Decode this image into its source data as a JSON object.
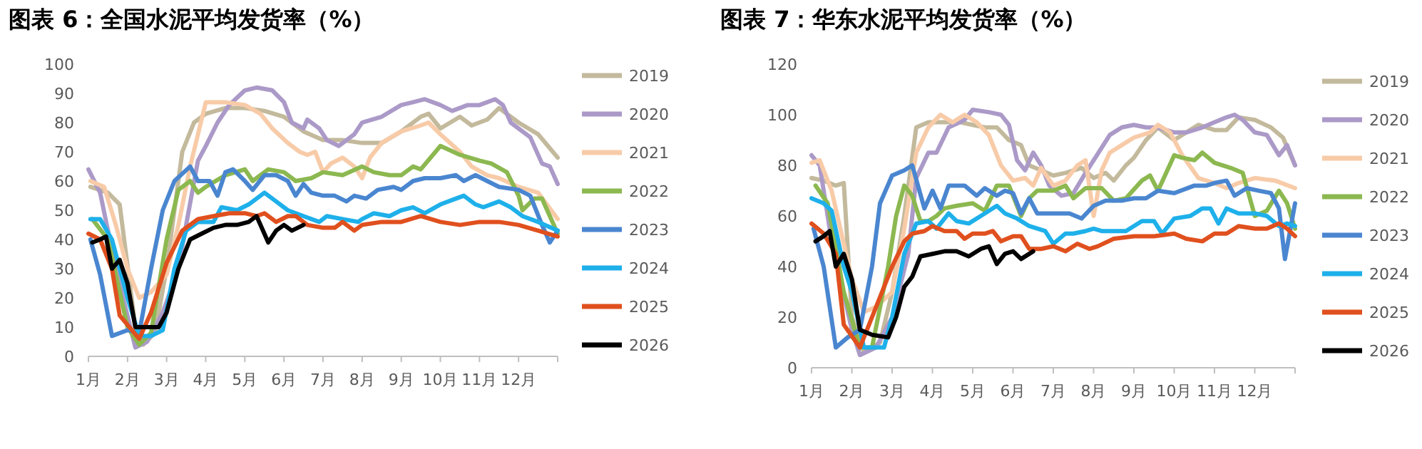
{
  "chart_data": [
    {
      "type": "line",
      "title": "图表 6：全国水泥平均发货率（%）",
      "xlim": [
        1,
        13
      ],
      "ylim": [
        0,
        100
      ],
      "yticks": [
        0,
        10,
        20,
        30,
        40,
        50,
        60,
        70,
        80,
        90,
        100
      ],
      "xticks": [
        {
          "value": 1,
          "label": "1月"
        },
        {
          "value": 2,
          "label": "2月"
        },
        {
          "value": 3,
          "label": "3月"
        },
        {
          "value": 4,
          "label": "4月"
        },
        {
          "value": 5,
          "label": "5月"
        },
        {
          "value": 6,
          "label": "6月"
        },
        {
          "value": 7,
          "label": "7月"
        },
        {
          "value": 8,
          "label": "8月"
        },
        {
          "value": 9,
          "label": "9月"
        },
        {
          "value": 10,
          "label": "10月"
        },
        {
          "value": 11,
          "label": "11月"
        },
        {
          "value": 12,
          "label": "12月"
        },
        {
          "value": 13,
          "label": null
        }
      ],
      "legend": "right",
      "grid": false,
      "marker": "none",
      "line_style": "solid",
      "series": [
        {
          "name": "2019",
          "color": "#c3b99c",
          "x": [
            1.05,
            1.5,
            1.8,
            2.2,
            2.4,
            2.7,
            3.0,
            3.4,
            3.7,
            4.0,
            4.5,
            5.0,
            5.5,
            6.0,
            6.5,
            7.0,
            7.5,
            8.0,
            8.5,
            9.0,
            9.5,
            9.7,
            10.0,
            10.5,
            10.8,
            11.2,
            11.5,
            12.0,
            12.5,
            13
          ],
          "values": [
            58,
            56,
            52,
            10,
            4,
            8,
            30,
            70,
            80,
            83,
            85,
            85,
            84,
            82,
            77,
            74,
            74,
            73,
            73,
            77,
            82,
            83,
            78,
            82,
            79,
            81,
            85,
            80,
            76,
            68
          ]
        },
        {
          "name": "2020",
          "color": "#ab9ac8",
          "x": [
            1.0,
            1.3,
            1.7,
            2.2,
            2.5,
            2.9,
            3.3,
            3.5,
            3.8,
            4.0,
            4.3,
            4.6,
            5.0,
            5.3,
            5.7,
            6.0,
            6.2,
            6.5,
            6.6,
            6.9,
            7.1,
            7.4,
            7.8,
            8.0,
            8.5,
            9.0,
            9.3,
            9.6,
            10.0,
            10.3,
            10.7,
            11.0,
            11.4,
            11.6,
            11.8,
            12.3,
            12.6,
            12.8,
            13
          ],
          "values": [
            64,
            56,
            30,
            3,
            5,
            15,
            30,
            45,
            67,
            72,
            80,
            86,
            91,
            92,
            91,
            87,
            80,
            78,
            81,
            78,
            74,
            72,
            76,
            80,
            82,
            86,
            87,
            88,
            86,
            84,
            86,
            86,
            88,
            86,
            80,
            75,
            66,
            65,
            59
          ]
        },
        {
          "name": "2021",
          "color": "#f8cba8",
          "x": [
            1.05,
            1.4,
            1.7,
            2.0,
            2.3,
            2.6,
            3.0,
            3.3,
            3.6,
            4.0,
            4.5,
            5.0,
            5.4,
            5.7,
            6.1,
            6.4,
            6.6,
            6.8,
            7.0,
            7.2,
            7.5,
            7.8,
            8.0,
            8.2,
            8.5,
            9.0,
            9.5,
            9.7,
            10.0,
            10.5,
            10.8,
            11.2,
            11.5,
            12.0,
            12.5,
            13
          ],
          "values": [
            60,
            58,
            45,
            30,
            20,
            22,
            28,
            45,
            65,
            87,
            87,
            86,
            83,
            78,
            73,
            70,
            69,
            70,
            63,
            66,
            68,
            65,
            61,
            68,
            73,
            77,
            79,
            80,
            76,
            70,
            65,
            62,
            61,
            58,
            56,
            47
          ]
        },
        {
          "name": "2022",
          "color": "#8cb850",
          "x": [
            1.1,
            1.5,
            2.0,
            2.3,
            2.6,
            3.0,
            3.3,
            3.6,
            3.8,
            4.0,
            4.5,
            5.0,
            5.2,
            5.6,
            6.0,
            6.3,
            6.7,
            7.0,
            7.5,
            8.0,
            8.3,
            8.7,
            9.0,
            9.3,
            9.5,
            10.0,
            10.5,
            11.0,
            11.3,
            11.7,
            12.0,
            12.1,
            12.4,
            12.6,
            13
          ],
          "values": [
            47,
            40,
            10,
            4,
            8,
            40,
            57,
            60,
            56,
            58,
            62,
            64,
            60,
            64,
            63,
            60,
            61,
            63,
            62,
            65,
            63,
            62,
            62,
            65,
            64,
            72,
            69,
            67,
            66,
            63,
            55,
            50,
            54,
            54,
            42
          ]
        },
        {
          "name": "2023",
          "color": "#4a86d0",
          "x": [
            1.05,
            1.3,
            1.6,
            2.0,
            2.3,
            2.6,
            2.9,
            3.2,
            3.6,
            3.8,
            4.1,
            4.3,
            4.5,
            4.7,
            5.0,
            5.2,
            5.5,
            5.8,
            6.1,
            6.3,
            6.5,
            6.7,
            7.0,
            7.3,
            7.6,
            7.8,
            8.1,
            8.4,
            8.8,
            9.0,
            9.3,
            9.6,
            10.0,
            10.4,
            10.6,
            10.9,
            11.2,
            11.5,
            12.0,
            12.3,
            12.6,
            12.8,
            13
          ],
          "values": [
            40,
            28,
            7,
            9,
            8,
            30,
            50,
            60,
            65,
            60,
            60,
            55,
            63,
            64,
            60,
            57,
            62,
            62,
            60,
            55,
            59,
            56,
            55,
            55,
            53,
            55,
            54,
            57,
            58,
            57,
            60,
            61,
            61,
            62,
            60,
            62,
            60,
            58,
            57,
            55,
            45,
            39,
            43
          ]
        },
        {
          "name": "2024",
          "color": "#1eb0ea",
          "x": [
            1.05,
            1.3,
            1.6,
            2.0,
            2.3,
            2.6,
            2.9,
            3.2,
            3.5,
            3.8,
            4.2,
            4.4,
            4.8,
            5.1,
            5.5,
            5.8,
            6.1,
            6.5,
            6.9,
            7.1,
            7.5,
            7.9,
            8.0,
            8.3,
            8.7,
            9.0,
            9.3,
            9.6,
            10.0,
            10.4,
            10.6,
            10.9,
            11.1,
            11.5,
            11.8,
            12.1,
            12.5,
            13
          ],
          "values": [
            47,
            47,
            40,
            20,
            7,
            7,
            9,
            30,
            43,
            46,
            46,
            51,
            50,
            52,
            56,
            53,
            50,
            48,
            46,
            48,
            47,
            46,
            47,
            49,
            48,
            50,
            51,
            49,
            52,
            54,
            55,
            52,
            51,
            53,
            51,
            48,
            46,
            43
          ]
        },
        {
          "name": "2025",
          "color": "#e0501e",
          "x": [
            1.0,
            1.3,
            1.6,
            1.8,
            2.3,
            2.6,
            3.0,
            3.4,
            3.8,
            4.2,
            4.6,
            5.0,
            5.3,
            5.5,
            5.8,
            6.1,
            6.3,
            6.6,
            7.0,
            7.3,
            7.5,
            7.8,
            8.0,
            8.5,
            9.0,
            9.5,
            10.0,
            10.5,
            11.0,
            11.5,
            12.0,
            12.5,
            13
          ],
          "values": [
            42,
            40,
            30,
            14,
            6,
            15,
            32,
            43,
            47,
            48,
            49,
            49,
            48,
            49,
            46,
            48,
            48,
            45,
            44,
            44,
            46,
            43,
            45,
            46,
            46,
            48,
            46,
            45,
            46,
            46,
            45,
            43,
            41
          ]
        },
        {
          "name": "2026",
          "color": "#000000",
          "x": [
            1.1,
            1.3,
            1.45,
            1.6,
            1.8,
            2.0,
            2.2,
            2.5,
            2.8,
            3.0,
            3.3,
            3.6,
            3.9,
            4.2,
            4.5,
            4.8,
            5.1,
            5.3,
            5.6,
            5.8,
            6.0,
            6.2,
            6.5
          ],
          "values": [
            39,
            40,
            41,
            30,
            33,
            25,
            10,
            10,
            10,
            15,
            30,
            40,
            42,
            44,
            45,
            45,
            46,
            48,
            39,
            43,
            45,
            43,
            45
          ]
        }
      ]
    },
    {
      "type": "line",
      "title": "图表 7：华东水泥平均发货率（%）",
      "xlim": [
        1,
        13
      ],
      "ylim": [
        0,
        120
      ],
      "yticks": [
        0,
        20,
        40,
        60,
        80,
        100,
        120
      ],
      "xticks": [
        {
          "value": 1,
          "label": "1月"
        },
        {
          "value": 2,
          "label": "2月"
        },
        {
          "value": 3,
          "label": "3月"
        },
        {
          "value": 4,
          "label": "4月"
        },
        {
          "value": 5,
          "label": "5月"
        },
        {
          "value": 6,
          "label": "6月"
        },
        {
          "value": 7,
          "label": "7月"
        },
        {
          "value": 8,
          "label": "8月"
        },
        {
          "value": 9,
          "label": "9月"
        },
        {
          "value": 10,
          "label": "10月"
        },
        {
          "value": 11,
          "label": "11月"
        },
        {
          "value": 12,
          "label": "12月"
        },
        {
          "value": 13,
          "label": null
        }
      ],
      "legend": "right",
      "grid": false,
      "marker": "none",
      "line_style": "solid",
      "series": [
        {
          "name": "2019",
          "color": "#c3b99c",
          "x": [
            1.0,
            1.3,
            1.6,
            1.8,
            2.0,
            2.3,
            2.7,
            3.0,
            3.3,
            3.6,
            3.9,
            4.3,
            4.7,
            5.0,
            5.3,
            5.6,
            5.9,
            6.2,
            6.4,
            6.7,
            7.0,
            7.3,
            7.7,
            8.0,
            8.3,
            8.5,
            8.8,
            9.0,
            9.3,
            9.6,
            10.0,
            10.3,
            10.6,
            11.0,
            11.3,
            11.6,
            12.0,
            12.4,
            12.7,
            13
          ],
          "values": [
            75,
            74,
            72,
            73,
            20,
            6,
            10,
            30,
            60,
            95,
            97,
            97,
            97,
            96,
            95,
            95,
            90,
            88,
            80,
            78,
            76,
            77,
            79,
            75,
            77,
            74,
            80,
            83,
            90,
            95,
            90,
            93,
            96,
            94,
            94,
            99,
            98,
            95,
            91,
            80
          ]
        },
        {
          "name": "2020",
          "color": "#ab9ac8",
          "x": [
            1.0,
            1.2,
            1.5,
            2.0,
            2.2,
            2.6,
            3.0,
            3.4,
            3.6,
            3.9,
            4.1,
            4.4,
            4.8,
            5.0,
            5.4,
            5.7,
            5.9,
            6.1,
            6.3,
            6.5,
            6.7,
            6.9,
            7.2,
            7.5,
            7.8,
            8.0,
            8.4,
            8.7,
            9.0,
            9.3,
            9.6,
            10.0,
            10.3,
            10.7,
            11.0,
            11.3,
            11.5,
            11.7,
            12.0,
            12.3,
            12.6,
            12.8,
            13
          ],
          "values": [
            84,
            80,
            50,
            15,
            5,
            8,
            20,
            45,
            75,
            85,
            85,
            95,
            98,
            102,
            101,
            100,
            96,
            82,
            78,
            85,
            80,
            72,
            68,
            69,
            77,
            82,
            92,
            95,
            96,
            95,
            95,
            93,
            93,
            95,
            97,
            99,
            100,
            98,
            93,
            92,
            84,
            88,
            80
          ]
        },
        {
          "name": "2021",
          "color": "#f8cba8",
          "x": [
            1.0,
            1.2,
            1.5,
            2.0,
            2.3,
            2.6,
            3.0,
            3.3,
            3.6,
            3.9,
            4.2,
            4.5,
            4.8,
            5.1,
            5.4,
            5.7,
            6.0,
            6.3,
            6.5,
            6.7,
            7.0,
            7.3,
            7.6,
            7.8,
            8.0,
            8.2,
            8.4,
            8.7,
            9.0,
            9.4,
            9.6,
            9.9,
            10.2,
            10.6,
            11.0,
            11.3,
            11.6,
            12.0,
            12.5,
            13
          ],
          "values": [
            81,
            82,
            70,
            35,
            22,
            24,
            30,
            55,
            85,
            95,
            100,
            97,
            100,
            97,
            92,
            80,
            74,
            75,
            72,
            79,
            72,
            74,
            80,
            82,
            60,
            78,
            85,
            88,
            91,
            93,
            96,
            93,
            84,
            75,
            73,
            71,
            73,
            75,
            74,
            71
          ]
        },
        {
          "name": "2022",
          "color": "#8cb850",
          "x": [
            1.1,
            1.4,
            1.8,
            2.2,
            2.5,
            2.9,
            3.1,
            3.3,
            3.5,
            3.7,
            3.9,
            4.1,
            4.3,
            4.6,
            5.0,
            5.3,
            5.6,
            5.9,
            6.2,
            6.4,
            6.6,
            7.0,
            7.3,
            7.5,
            7.8,
            8.2,
            8.5,
            8.8,
            9.2,
            9.4,
            9.6,
            10.0,
            10.2,
            10.5,
            10.7,
            11.0,
            11.4,
            11.7,
            12.0,
            12.3,
            12.6,
            12.8,
            13
          ],
          "values": [
            72,
            65,
            30,
            8,
            8,
            40,
            60,
            72,
            68,
            58,
            58,
            60,
            63,
            64,
            65,
            62,
            72,
            72,
            60,
            67,
            70,
            70,
            72,
            67,
            71,
            71,
            66,
            67,
            74,
            76,
            70,
            84,
            83,
            82,
            85,
            81,
            79,
            77,
            60,
            62,
            70,
            65,
            55
          ]
        },
        {
          "name": "2023",
          "color": "#4a86d0",
          "x": [
            1.05,
            1.3,
            1.6,
            1.9,
            2.2,
            2.5,
            2.7,
            3.0,
            3.3,
            3.5,
            3.8,
            4.0,
            4.2,
            4.4,
            4.8,
            5.1,
            5.3,
            5.6,
            5.8,
            6.0,
            6.2,
            6.4,
            6.6,
            7.0,
            7.4,
            7.7,
            8.0,
            8.3,
            8.7,
            9.0,
            9.3,
            9.6,
            10.0,
            10.5,
            10.8,
            11.0,
            11.3,
            11.5,
            11.8,
            12.1,
            12.4,
            12.6,
            12.75,
            13
          ],
          "values": [
            55,
            40,
            8,
            12,
            15,
            40,
            65,
            76,
            78,
            80,
            63,
            70,
            63,
            72,
            72,
            68,
            71,
            68,
            70,
            69,
            61,
            67,
            61,
            61,
            61,
            59,
            64,
            66,
            66,
            67,
            67,
            70,
            69,
            72,
            72,
            73,
            74,
            68,
            71,
            70,
            69,
            63,
            43,
            65
          ]
        },
        {
          "name": "2024",
          "color": "#1eb0ea",
          "x": [
            1.0,
            1.3,
            1.5,
            1.8,
            2.0,
            2.3,
            2.6,
            2.8,
            3.0,
            3.3,
            3.6,
            3.9,
            4.1,
            4.4,
            4.6,
            4.9,
            5.2,
            5.6,
            5.8,
            6.1,
            6.4,
            6.8,
            7.0,
            7.3,
            7.5,
            7.8,
            8.0,
            8.2,
            8.5,
            8.8,
            9.2,
            9.5,
            9.7,
            10.0,
            10.4,
            10.7,
            10.9,
            11.1,
            11.3,
            11.6,
            12.0,
            12.3,
            12.6,
            12.8,
            13
          ],
          "values": [
            67,
            65,
            62,
            40,
            30,
            8,
            8,
            8,
            20,
            45,
            57,
            58,
            55,
            61,
            58,
            57,
            60,
            64,
            61,
            59,
            56,
            54,
            49,
            53,
            53,
            54,
            55,
            54,
            54,
            54,
            58,
            58,
            53,
            59,
            60,
            63,
            63,
            57,
            63,
            61,
            61,
            60,
            56,
            57,
            56
          ]
        },
        {
          "name": "2025",
          "color": "#e0501e",
          "x": [
            1.0,
            1.3,
            1.6,
            1.8,
            2.2,
            2.5,
            3.0,
            3.3,
            3.5,
            3.8,
            4.0,
            4.3,
            4.6,
            4.8,
            5.0,
            5.3,
            5.5,
            5.7,
            6.0,
            6.2,
            6.4,
            6.7,
            7.0,
            7.3,
            7.6,
            7.9,
            8.1,
            8.5,
            9.0,
            9.5,
            10.0,
            10.3,
            10.7,
            11.0,
            11.3,
            11.6,
            12.0,
            12.3,
            12.6,
            12.8,
            13
          ],
          "values": [
            57,
            53,
            45,
            17,
            8,
            20,
            40,
            50,
            53,
            54,
            56,
            54,
            54,
            51,
            53,
            53,
            54,
            50,
            52,
            52,
            47,
            47,
            48,
            46,
            49,
            47,
            48,
            51,
            52,
            52,
            53,
            51,
            50,
            53,
            53,
            56,
            55,
            55,
            57,
            55,
            52
          ]
        },
        {
          "name": "2026",
          "color": "#000000",
          "x": [
            1.1,
            1.3,
            1.45,
            1.6,
            1.8,
            2.0,
            2.2,
            2.5,
            2.9,
            3.1,
            3.3,
            3.5,
            3.7,
            4.0,
            4.3,
            4.6,
            4.9,
            5.2,
            5.4,
            5.6,
            5.8,
            6.0,
            6.2,
            6.5
          ],
          "values": [
            50,
            52,
            54,
            40,
            45,
            35,
            15,
            13,
            12,
            20,
            32,
            36,
            44,
            45,
            46,
            46,
            44,
            47,
            48,
            41,
            45,
            46,
            43,
            46
          ]
        }
      ]
    }
  ]
}
